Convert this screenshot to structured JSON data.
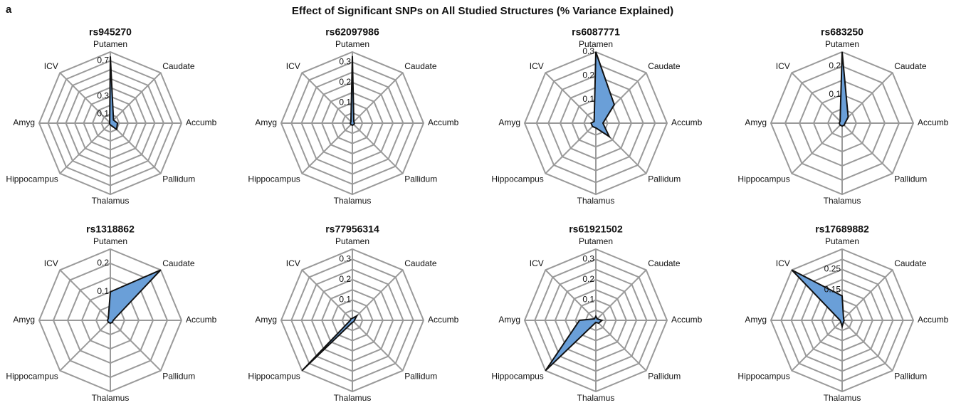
{
  "title": "Effect of Significant SNPs on All Studied Structures (% Variance Explained)",
  "panel_label": "a",
  "chart_data": [
    {
      "type": "radar",
      "title": "rs945270",
      "color": "#6a9fd8",
      "categories": [
        "Putamen",
        "Caudate",
        "Accumb",
        "Pallidum",
        "Thalamus",
        "Hippocampus",
        "Amyg",
        "ICV"
      ],
      "values": [
        0.75,
        0.05,
        0.08,
        0.1,
        0.02,
        0.01,
        0.01,
        0.01
      ],
      "rlim": [
        0,
        0.8
      ],
      "rgrid": [
        0.1,
        0.2,
        0.3,
        0.4,
        0.5,
        0.6,
        0.7,
        0.8
      ],
      "rticks": [
        0.1,
        0.3,
        0.7
      ]
    },
    {
      "type": "radar",
      "title": "rs62097986",
      "color": "#6a9fd8",
      "categories": [
        "Putamen",
        "Caudate",
        "Accumb",
        "Pallidum",
        "Thalamus",
        "Hippocampus",
        "Amyg",
        "ICV"
      ],
      "values": [
        0.33,
        0.01,
        0.01,
        0.01,
        0.01,
        0.01,
        0.01,
        0.01
      ],
      "rlim": [
        0,
        0.35
      ],
      "rgrid": [
        0.05,
        0.1,
        0.15,
        0.2,
        0.25,
        0.3,
        0.35
      ],
      "rticks": [
        0.1,
        0.2,
        0.3
      ]
    },
    {
      "type": "radar",
      "title": "rs6087771",
      "color": "#6a9fd8",
      "categories": [
        "Putamen",
        "Caudate",
        "Accumb",
        "Pallidum",
        "Thalamus",
        "Hippocampus",
        "Amyg",
        "ICV"
      ],
      "values": [
        0.3,
        0.11,
        0.03,
        0.08,
        0.02,
        0.02,
        0.02,
        0.01
      ],
      "rlim": [
        0,
        0.3
      ],
      "rgrid": [
        0.05,
        0.1,
        0.15,
        0.2,
        0.25,
        0.3
      ],
      "rticks": [
        0.1,
        0.2,
        0.3
      ]
    },
    {
      "type": "radar",
      "title": "rs683250",
      "color": "#6a9fd8",
      "categories": [
        "Putamen",
        "Caudate",
        "Accumb",
        "Pallidum",
        "Thalamus",
        "Hippocampus",
        "Amyg",
        "ICV"
      ],
      "values": [
        0.25,
        0.03,
        0.01,
        0.01,
        0.01,
        0.01,
        0.01,
        0.01
      ],
      "rlim": [
        0,
        0.25
      ],
      "rgrid": [
        0.05,
        0.1,
        0.15,
        0.2,
        0.25
      ],
      "rticks": [
        0.1,
        0.2
      ]
    },
    {
      "type": "radar",
      "title": "rs1318862",
      "color": "#6a9fd8",
      "categories": [
        "Putamen",
        "Caudate",
        "Accumb",
        "Pallidum",
        "Thalamus",
        "Hippocampus",
        "Amyg",
        "ICV"
      ],
      "values": [
        0.1,
        0.25,
        0.01,
        0.01,
        0.01,
        0.01,
        0.01,
        0.01
      ],
      "rlim": [
        0,
        0.25
      ],
      "rgrid": [
        0.05,
        0.1,
        0.15,
        0.2,
        0.25
      ],
      "rticks": [
        0.1,
        0.2
      ]
    },
    {
      "type": "radar",
      "title": "rs77956314",
      "color": "#6a9fd8",
      "categories": [
        "Putamen",
        "Caudate",
        "Accumb",
        "Pallidum",
        "Thalamus",
        "Hippocampus",
        "Amyg",
        "ICV"
      ],
      "values": [
        0.01,
        0.03,
        0.01,
        0.01,
        0.01,
        0.35,
        0.01,
        0.01
      ],
      "rlim": [
        0,
        0.35
      ],
      "rgrid": [
        0.05,
        0.1,
        0.15,
        0.2,
        0.25,
        0.3,
        0.35
      ],
      "rticks": [
        0.1,
        0.2,
        0.3
      ]
    },
    {
      "type": "radar",
      "title": "rs61921502",
      "color": "#6a9fd8",
      "categories": [
        "Putamen",
        "Caudate",
        "Accumb",
        "Pallidum",
        "Thalamus",
        "Hippocampus",
        "Amyg",
        "ICV"
      ],
      "values": [
        0.02,
        0.01,
        0.03,
        0.02,
        0.01,
        0.35,
        0.08,
        0.01
      ],
      "rlim": [
        0,
        0.35
      ],
      "rgrid": [
        0.05,
        0.1,
        0.15,
        0.2,
        0.25,
        0.3,
        0.35
      ],
      "rticks": [
        0.1,
        0.2,
        0.3
      ]
    },
    {
      "type": "radar",
      "title": "rs17689882",
      "color": "#6a9fd8",
      "categories": [
        "Putamen",
        "Caudate",
        "Accumb",
        "Pallidum",
        "Thalamus",
        "Hippocampus",
        "Amyg",
        "ICV"
      ],
      "values": [
        0.12,
        0.01,
        0.01,
        0.01,
        0.03,
        0.01,
        0.01,
        0.35
      ],
      "rlim": [
        0,
        0.35
      ],
      "rgrid": [
        0.05,
        0.1,
        0.15,
        0.2,
        0.25,
        0.3,
        0.35
      ],
      "rticks": [
        0.15,
        0.25
      ]
    }
  ]
}
